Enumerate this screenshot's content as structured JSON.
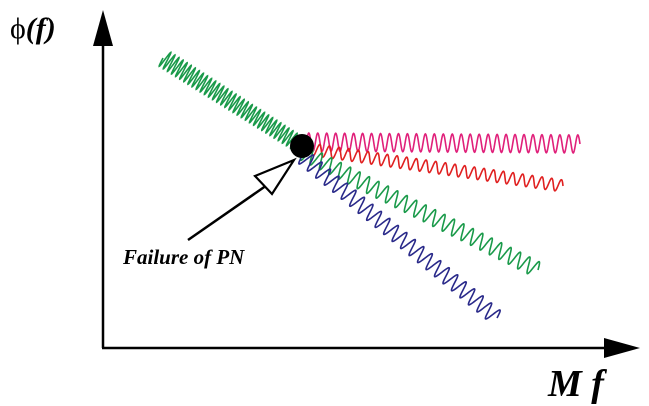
{
  "axes": {
    "y_label_symbol": "ϕ",
    "y_label_arg": "(f)",
    "x_label": "M f"
  },
  "annotation": {
    "text": "Failure of PN"
  },
  "colors": {
    "axis": "#000000",
    "curve_1": "#1a9a4a",
    "curve_2": "#e0207a",
    "curve_3": "#e02020",
    "curve_4": "#1a9a4a",
    "curve_5": "#2a2a8a",
    "failure_point": "#000000"
  }
}
